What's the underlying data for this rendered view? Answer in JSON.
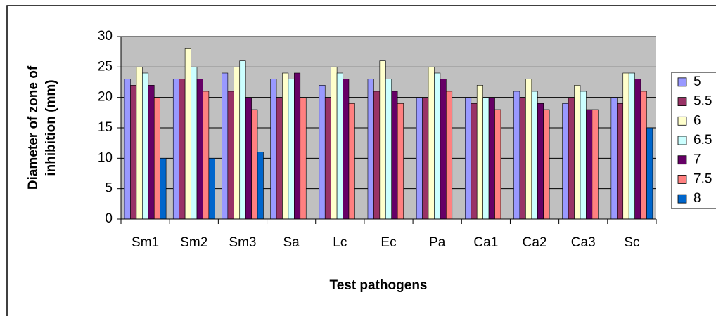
{
  "chart_data": {
    "type": "bar",
    "x_label": "Test pathogens",
    "y_label": [
      "Diameter of zone of",
      "inhibition (mm)"
    ],
    "categories": [
      "Sm1",
      "Sm2",
      "Sm3",
      "Sa",
      "Lc",
      "Ec",
      "Pa",
      "Ca1",
      "Ca2",
      "Ca3",
      "Sc"
    ],
    "series": [
      {
        "name": "5",
        "color": "#9999ff",
        "values": [
          23,
          23,
          24,
          23,
          22,
          23,
          20,
          20,
          21,
          19,
          20
        ]
      },
      {
        "name": "5.5",
        "color": "#993366",
        "values": [
          22,
          23,
          21,
          20,
          20,
          21,
          20,
          19,
          20,
          20,
          19
        ]
      },
      {
        "name": "6",
        "color": "#ffffcc",
        "values": [
          25,
          28,
          25,
          24,
          25,
          26,
          25,
          22,
          23,
          22,
          24
        ]
      },
      {
        "name": "6.5",
        "color": "#ccffff",
        "values": [
          24,
          25,
          26,
          23,
          24,
          23,
          24,
          20,
          21,
          21,
          24
        ]
      },
      {
        "name": "7",
        "color": "#660066",
        "values": [
          22,
          23,
          20,
          24,
          23,
          21,
          23,
          20,
          19,
          18,
          23
        ]
      },
      {
        "name": "7.5",
        "color": "#ff8080",
        "values": [
          20,
          21,
          18,
          20,
          19,
          19,
          21,
          18,
          18,
          18,
          21
        ]
      },
      {
        "name": "8",
        "color": "#0066cc",
        "values": [
          10,
          10,
          11,
          null,
          null,
          null,
          null,
          null,
          null,
          null,
          15
        ]
      }
    ],
    "ylim": [
      0,
      30
    ],
    "yticks": [
      0,
      5,
      10,
      15,
      20,
      25,
      30
    ],
    "grid": true,
    "legend": "right",
    "plot_background": "#c0c0c0"
  }
}
